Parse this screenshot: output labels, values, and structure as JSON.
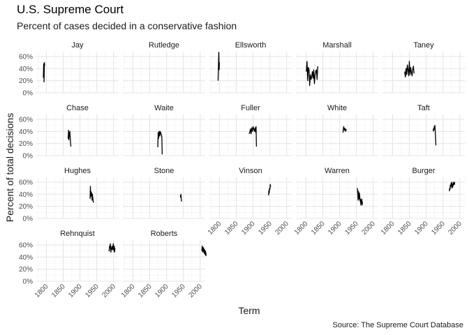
{
  "chart_data": {
    "type": "line",
    "title": "U.S. Supreme Court",
    "subtitle": "Percent of cases decided in a conservative fashion",
    "xlabel": "Term",
    "ylabel": "Percent of total decisions",
    "caption": "Source: The Supreme Court Database",
    "xlim": [
      1770,
      2015
    ],
    "ylim": [
      0,
      68
    ],
    "x_ticks": [
      1800,
      1850,
      1900,
      1950,
      2000
    ],
    "y_ticks": [
      0,
      20,
      40,
      60
    ],
    "y_tick_labels": [
      "0%",
      "20%",
      "40%",
      "60%"
    ],
    "x_tick_labels": [
      "1800",
      "1850",
      "1900",
      "1950",
      "2000"
    ],
    "grid": true,
    "facets": [
      {
        "name": "Jay",
        "x": [
          1791,
          1792,
          1793,
          1794,
          1795
        ],
        "y": [
          25,
          48,
          18,
          50,
          45
        ]
      },
      {
        "name": "Rutledge",
        "x": [],
        "y": []
      },
      {
        "name": "Ellsworth",
        "x": [
          1796,
          1797,
          1798,
          1799,
          1800
        ],
        "y": [
          20,
          45,
          67,
          38,
          50
        ]
      },
      {
        "name": "Marshall",
        "x": [
          1801,
          1803,
          1805,
          1807,
          1809,
          1811,
          1813,
          1815,
          1817,
          1819,
          1821,
          1823,
          1825,
          1827,
          1829,
          1831,
          1833,
          1835
        ],
        "y": [
          35,
          52,
          20,
          42,
          38,
          12,
          30,
          22,
          26,
          35,
          24,
          38,
          15,
          30,
          36,
          38,
          22,
          44
        ]
      },
      {
        "name": "Taney",
        "x": [
          1836,
          1838,
          1840,
          1842,
          1844,
          1846,
          1848,
          1850,
          1852,
          1854,
          1856,
          1858,
          1860,
          1862,
          1864
        ],
        "y": [
          35,
          26,
          40,
          30,
          46,
          38,
          28,
          52,
          30,
          42,
          34,
          28,
          38,
          44,
          32
        ]
      },
      {
        "name": "Chase",
        "x": [
          1864,
          1865,
          1866,
          1867,
          1868,
          1869,
          1870,
          1871,
          1872,
          1873
        ],
        "y": [
          28,
          30,
          42,
          26,
          38,
          32,
          40,
          30,
          20,
          15
        ]
      },
      {
        "name": "Waite",
        "x": [
          1874,
          1875,
          1876,
          1877,
          1878,
          1879,
          1880,
          1881,
          1882,
          1883,
          1884,
          1885,
          1886,
          1887
        ],
        "y": [
          14,
          38,
          28,
          34,
          40,
          38,
          32,
          40,
          36,
          38,
          35,
          34,
          30,
          2
        ]
      },
      {
        "name": "Fuller",
        "x": [
          1888,
          1890,
          1892,
          1894,
          1896,
          1898,
          1900,
          1902,
          1904,
          1906,
          1908,
          1909,
          1910
        ],
        "y": [
          36,
          38,
          44,
          36,
          46,
          40,
          48,
          44,
          40,
          46,
          38,
          48,
          15
        ]
      },
      {
        "name": "White",
        "x": [
          1910,
          1912,
          1914,
          1916,
          1918,
          1920
        ],
        "y": [
          38,
          48,
          42,
          45,
          40,
          44
        ]
      },
      {
        "name": "Taft",
        "x": [
          1921,
          1922,
          1923,
          1924,
          1925,
          1926,
          1927,
          1928,
          1929
        ],
        "y": [
          40,
          45,
          42,
          48,
          44,
          50,
          42,
          30,
          17
        ]
      },
      {
        "name": "Hughes",
        "x": [
          1930,
          1931,
          1932,
          1933,
          1934,
          1935,
          1936,
          1937,
          1938,
          1939,
          1940
        ],
        "y": [
          32,
          53,
          36,
          44,
          38,
          42,
          30,
          40,
          34,
          30,
          26
        ]
      },
      {
        "name": "Stone",
        "x": [
          1941,
          1942,
          1943,
          1944,
          1945
        ],
        "y": [
          38,
          35,
          40,
          30,
          28
        ]
      },
      {
        "name": "Vinson",
        "x": [
          1946,
          1947,
          1948,
          1949,
          1950,
          1951,
          1952
        ],
        "y": [
          38,
          46,
          42,
          50,
          48,
          56,
          52
        ]
      },
      {
        "name": "Warren",
        "x": [
          1953,
          1954,
          1955,
          1956,
          1957,
          1958,
          1959,
          1960,
          1961,
          1962,
          1963,
          1964,
          1965,
          1966,
          1967,
          1968
        ],
        "y": [
          50,
          40,
          30,
          45,
          36,
          32,
          42,
          36,
          28,
          32,
          22,
          30,
          25,
          32,
          22,
          28
        ]
      },
      {
        "name": "Burger",
        "x": [
          1969,
          1970,
          1971,
          1972,
          1973,
          1974,
          1975,
          1976,
          1977,
          1978,
          1979,
          1980,
          1981,
          1982,
          1983,
          1984,
          1985
        ],
        "y": [
          45,
          50,
          48,
          55,
          52,
          58,
          54,
          60,
          50,
          56,
          52,
          58,
          55,
          60,
          58,
          56,
          60
        ]
      },
      {
        "name": "Rehnquist",
        "x": [
          1986,
          1987,
          1988,
          1989,
          1990,
          1991,
          1992,
          1993,
          1994,
          1995,
          1996,
          1997,
          1998,
          1999,
          2000,
          2001,
          2002,
          2003,
          2004
        ],
        "y": [
          52,
          50,
          58,
          55,
          62,
          56,
          48,
          55,
          52,
          58,
          54,
          56,
          52,
          62,
          55,
          50,
          58,
          48,
          55
        ]
      },
      {
        "name": "Roberts",
        "x": [
          2005,
          2006,
          2007,
          2008,
          2009,
          2010,
          2011,
          2012,
          2013,
          2014,
          2015,
          2016,
          2017,
          2018
        ],
        "y": [
          50,
          58,
          52,
          48,
          56,
          50,
          54,
          46,
          52,
          48,
          44,
          50,
          42,
          46
        ]
      }
    ]
  }
}
